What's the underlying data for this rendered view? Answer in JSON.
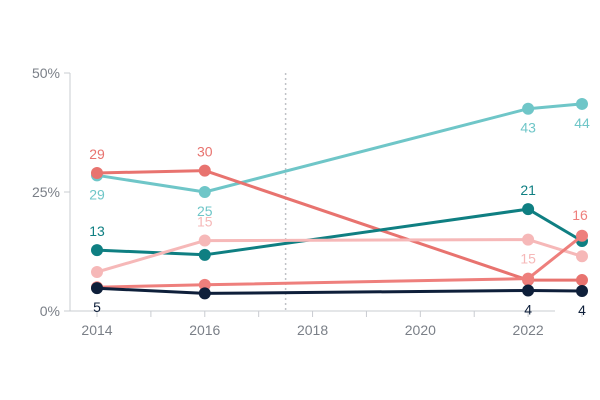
{
  "chart_data": {
    "type": "line",
    "title": "",
    "xlabel": "",
    "ylabel": "",
    "xlim": [
      2014,
      2023
    ],
    "ylim": [
      0,
      50
    ],
    "x_ticks": [
      2014,
      2016,
      2018,
      2020,
      2022
    ],
    "x_tick_labels": [
      "2014",
      "2016",
      "2018",
      "2020",
      "2022"
    ],
    "y_ticks": [
      0,
      25,
      50
    ],
    "y_tick_labels": [
      "0%",
      "25%",
      "50%"
    ],
    "grid": false,
    "legend": "none",
    "reference_line_x": 2017.5,
    "series": [
      {
        "color": "#6fc6c8",
        "points": [
          [
            2014,
            28.5
          ],
          [
            2016,
            25
          ],
          [
            2022,
            42.5
          ],
          [
            2023,
            43.5
          ]
        ],
        "labels": [
          {
            "x": 2014,
            "text": "29",
            "pos": "below"
          },
          {
            "x": 2016,
            "text": "25",
            "pos": "below"
          },
          {
            "x": 2022,
            "text": "43",
            "pos": "below"
          },
          {
            "x": 2023,
            "text": "44",
            "pos": "below"
          }
        ]
      },
      {
        "color": "#e8736f",
        "points": [
          [
            2014,
            29
          ],
          [
            2016,
            29.5
          ],
          [
            2022,
            6.5
          ],
          [
            2023,
            6.5
          ]
        ],
        "labels": [
          {
            "x": 2014,
            "text": "29",
            "pos": "above"
          },
          {
            "x": 2016,
            "text": "30",
            "pos": "above"
          }
        ]
      },
      {
        "color": "#0f7f82",
        "points": [
          [
            2014,
            12.8
          ],
          [
            2016,
            11.8
          ],
          [
            2022,
            21.4
          ],
          [
            2023,
            14.7
          ]
        ],
        "labels": [
          {
            "x": 2014,
            "text": "13",
            "pos": "above"
          },
          {
            "x": 2022,
            "text": "21",
            "pos": "above"
          }
        ]
      },
      {
        "color": "#f6b8b8",
        "points": [
          [
            2014,
            8.2
          ],
          [
            2016,
            14.8
          ],
          [
            2022,
            15
          ],
          [
            2023,
            11.5
          ]
        ],
        "labels": [
          {
            "x": 2016,
            "text": "15",
            "pos": "above"
          },
          {
            "x": 2022,
            "text": "15",
            "pos": "below"
          }
        ]
      },
      {
        "color": "#ee7f7c",
        "points": [
          [
            2014,
            5
          ],
          [
            2016,
            5.5
          ],
          [
            2022,
            6.8
          ],
          [
            2023,
            15.8
          ]
        ],
        "labels": [
          {
            "x": 2023,
            "text": "16",
            "pos": "above-left"
          }
        ]
      },
      {
        "color": "#0e1f3a",
        "points": [
          [
            2014,
            4.8
          ],
          [
            2016,
            3.7
          ],
          [
            2022,
            4.3
          ],
          [
            2023,
            4.2
          ]
        ],
        "labels": [
          {
            "x": 2014,
            "text": "5",
            "pos": "below"
          },
          {
            "x": 2022,
            "text": "4",
            "pos": "below"
          },
          {
            "x": 2023,
            "text": "4",
            "pos": "below"
          }
        ]
      }
    ]
  }
}
